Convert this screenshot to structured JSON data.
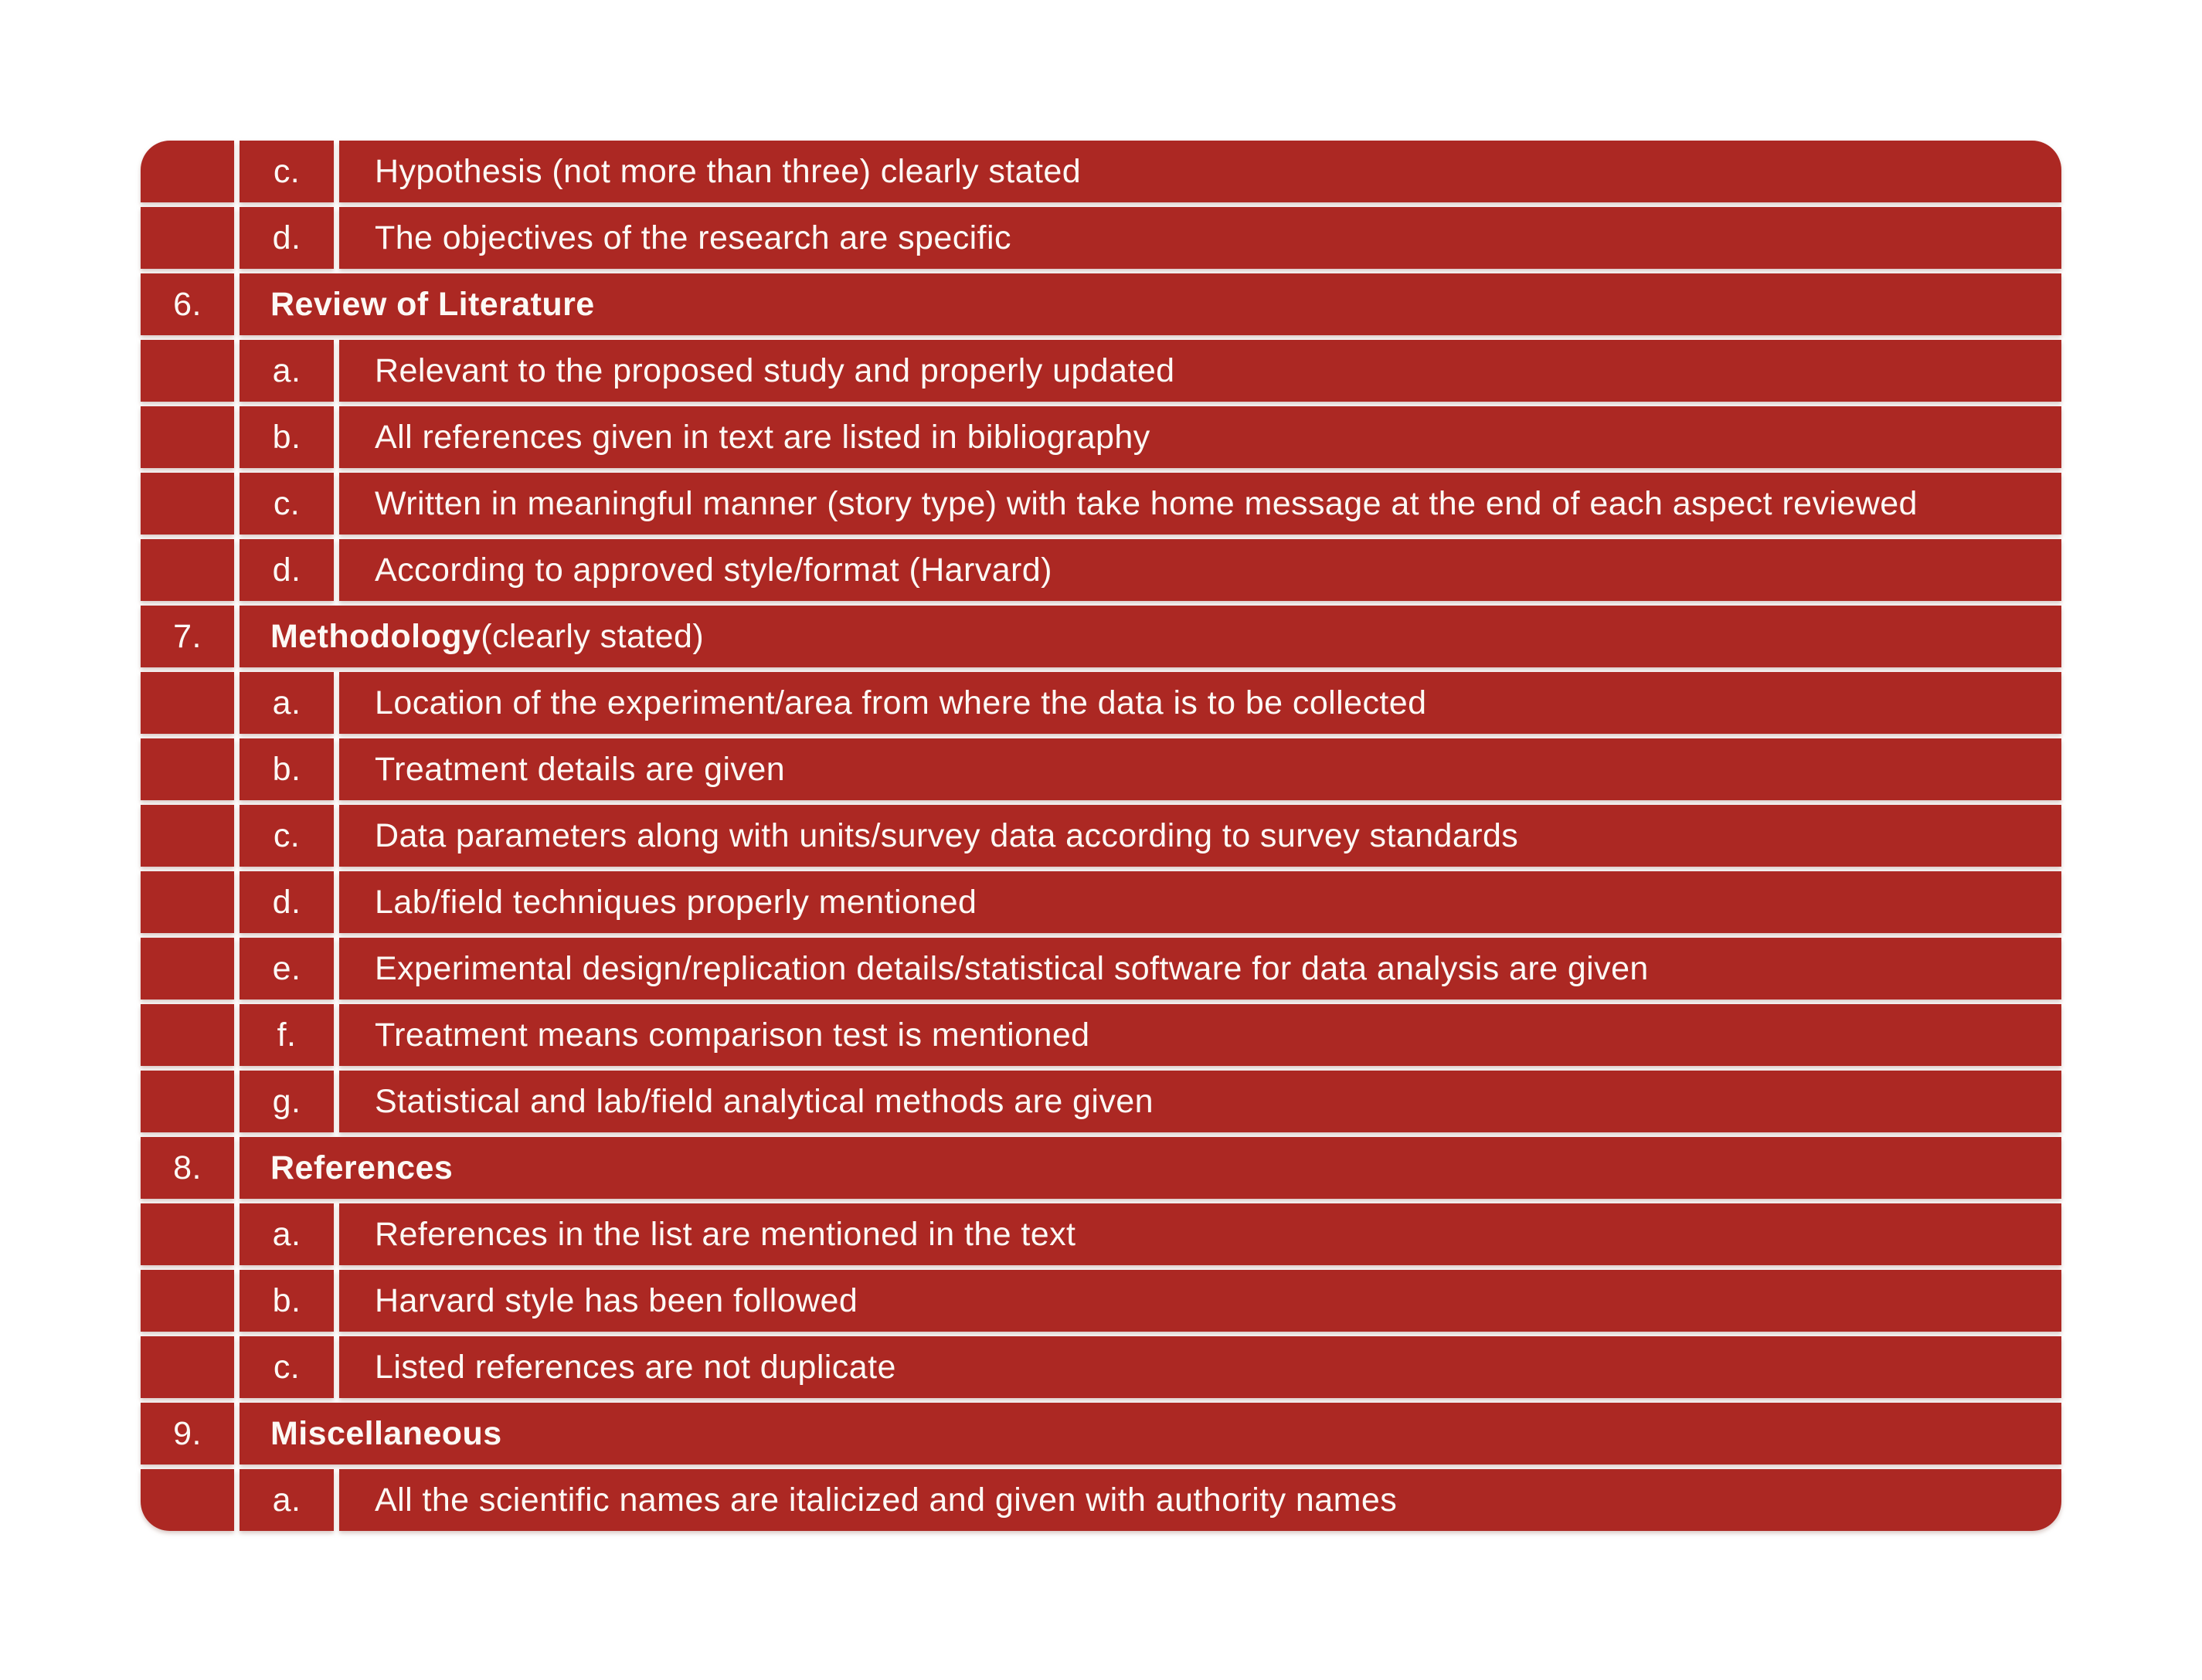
{
  "page": {
    "background": "#ffffff"
  },
  "table": {
    "accent_color": "#AC2823",
    "divider_color": "#ffffff",
    "text_color": "#FCF9F5",
    "rows": [
      {
        "type": "item",
        "letter": "c.",
        "text": "Hypothesis (not more than three) clearly stated"
      },
      {
        "type": "item",
        "letter": "d.",
        "text": "The objectives of the research are specific"
      },
      {
        "type": "section",
        "number": "6.",
        "title": "Review of Literature",
        "title_suffix": ""
      },
      {
        "type": "item",
        "letter": "a.",
        "text": "Relevant to the proposed study and properly updated"
      },
      {
        "type": "item",
        "letter": "b.",
        "text": "All references given in text are listed in bibliography"
      },
      {
        "type": "item",
        "letter": "c.",
        "text": "Written in meaningful manner (story type) with take home message at the end of each aspect reviewed"
      },
      {
        "type": "item",
        "letter": "d.",
        "text": "According to approved style/format (Harvard)"
      },
      {
        "type": "section",
        "number": "7.",
        "title": "Methodology",
        "title_suffix": " (clearly stated)"
      },
      {
        "type": "item",
        "letter": "a.",
        "text": "Location of the experiment/area from where the data is to be collected"
      },
      {
        "type": "item",
        "letter": "b.",
        "text": "Treatment details are given"
      },
      {
        "type": "item",
        "letter": "c.",
        "text": "Data parameters along with units/survey data according to survey standards"
      },
      {
        "type": "item",
        "letter": "d.",
        "text": "Lab/field techniques properly mentioned"
      },
      {
        "type": "item",
        "letter": "e.",
        "text": "Experimental design/replication details/statistical software for data analysis are given"
      },
      {
        "type": "item",
        "letter": "f.",
        "text": "Treatment means comparison test is mentioned"
      },
      {
        "type": "item",
        "letter": "g.",
        "text": "Statistical and lab/field analytical methods are given"
      },
      {
        "type": "section",
        "number": "8.",
        "title": "References",
        "title_suffix": ""
      },
      {
        "type": "item",
        "letter": "a.",
        "text": "References in the list are mentioned in the text"
      },
      {
        "type": "item",
        "letter": "b.",
        "text": "Harvard style has been followed"
      },
      {
        "type": "item",
        "letter": "c.",
        "text": "Listed references are not duplicate"
      },
      {
        "type": "section",
        "number": "9.",
        "title": "Miscellaneous",
        "title_suffix": ""
      },
      {
        "type": "item",
        "letter": "a.",
        "text": "All the scientific names are italicized and given with authority names"
      }
    ]
  }
}
